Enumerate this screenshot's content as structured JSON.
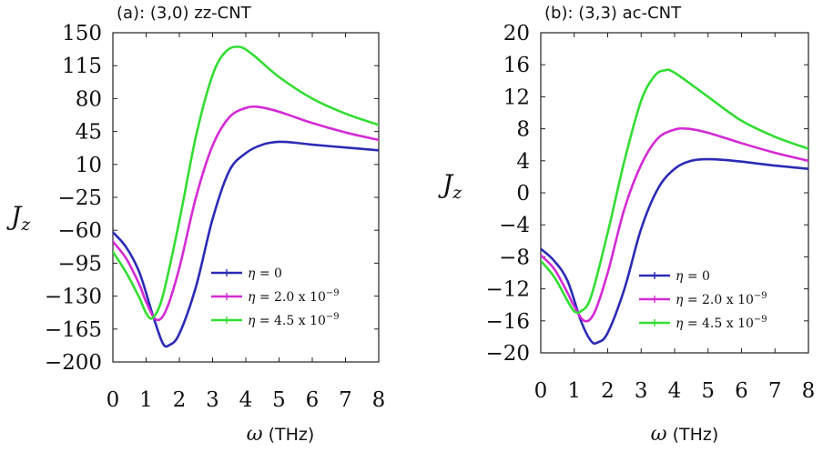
{
  "chart_data": [
    {
      "type": "line",
      "title": "(a): (3,0) zz-CNT",
      "xlabel_symbol": "ω",
      "xlabel_unit": "(THz)",
      "ylabel": "J",
      "ylabel_sub": "z",
      "xlim": [
        0,
        8
      ],
      "ylim": [
        -200,
        150
      ],
      "xticks": [
        0,
        1,
        2,
        3,
        4,
        5,
        6,
        7,
        8
      ],
      "yticks": [
        150,
        115,
        80,
        45,
        10,
        -25,
        -60,
        -95,
        -130,
        -165,
        -200
      ],
      "ytick_labels": [
        "150",
        "115",
        "80",
        "45",
        "10",
        "-25",
        "-60",
        "-95",
        "-130",
        "-165",
        "-200"
      ],
      "legend_position": "lower-right",
      "series": [
        {
          "name": "η = 0",
          "color": "#2b2bb5",
          "x": [
            0,
            0.4,
            0.8,
            1.2,
            1.5,
            1.7,
            2.0,
            2.5,
            3.0,
            3.5,
            4.0,
            4.5,
            5.0,
            5.5,
            6.0,
            7.0,
            8.0
          ],
          "y": [
            -62,
            -78,
            -105,
            -150,
            -180,
            -182,
            -170,
            -120,
            -48,
            3,
            22,
            31,
            34,
            33,
            31,
            28,
            25
          ]
        },
        {
          "name": "η = 2.0 x 10",
          "name_exp": "-9",
          "color": "#d42ad4",
          "x": [
            0,
            0.4,
            0.8,
            1.0,
            1.3,
            1.6,
            2.0,
            2.5,
            3.0,
            3.5,
            4.0,
            4.4,
            5.0,
            6.0,
            7.0,
            8.0
          ],
          "y": [
            -72,
            -90,
            -118,
            -136,
            -155,
            -145,
            -100,
            -25,
            30,
            60,
            70,
            71,
            66,
            54,
            44,
            36
          ]
        },
        {
          "name": "η = 4.5 x 10",
          "name_exp": "-9",
          "color": "#33dd33",
          "x": [
            0,
            0.4,
            0.8,
            1.0,
            1.2,
            1.5,
            2.0,
            2.5,
            3.0,
            3.4,
            3.8,
            4.2,
            5.0,
            6.0,
            7.0,
            8.0
          ],
          "y": [
            -83,
            -105,
            -132,
            -148,
            -153,
            -130,
            -50,
            40,
            105,
            130,
            135,
            127,
            103,
            80,
            64,
            52
          ]
        }
      ]
    },
    {
      "type": "line",
      "title": "(b): (3,3) ac-CNT",
      "xlabel_symbol": "ω",
      "xlabel_unit": "(THz)",
      "ylabel": "J",
      "ylabel_sub": "z",
      "xlim": [
        0,
        8
      ],
      "ylim": [
        -20,
        20
      ],
      "xticks": [
        0,
        1,
        2,
        3,
        4,
        5,
        6,
        7,
        8
      ],
      "yticks": [
        20,
        16,
        12,
        8,
        4,
        0,
        -4,
        -8,
        -12,
        -16,
        -20
      ],
      "ytick_labels": [
        "20",
        "16",
        "12",
        "8",
        "4",
        "0",
        "-4",
        "-8",
        "-12",
        "-16",
        "-20"
      ],
      "legend_position": "lower-right",
      "series": [
        {
          "name": "η = 0",
          "color": "#2b2bb5",
          "x": [
            0,
            0.4,
            0.8,
            1.2,
            1.5,
            1.7,
            2.0,
            2.5,
            3.0,
            3.5,
            4.0,
            4.5,
            5.0,
            5.5,
            6.0,
            7.0,
            8.0
          ],
          "y": [
            -7,
            -8.5,
            -11,
            -16,
            -18.5,
            -18.7,
            -17.5,
            -12,
            -4.5,
            0.5,
            3,
            4,
            4.2,
            4.1,
            3.9,
            3.4,
            3
          ]
        },
        {
          "name": "η = 2.0 x 10",
          "name_exp": "-9",
          "color": "#d42ad4",
          "x": [
            0,
            0.4,
            0.8,
            1.0,
            1.3,
            1.6,
            2.0,
            2.5,
            3.0,
            3.5,
            4.0,
            4.4,
            5.0,
            6.0,
            7.0,
            8.0
          ],
          "y": [
            -7.8,
            -9.5,
            -12.5,
            -14.2,
            -16,
            -15,
            -10,
            -2,
            3.5,
            6.8,
            7.9,
            8,
            7.5,
            6.2,
            5,
            4
          ]
        },
        {
          "name": "η = 4.5 x 10",
          "name_exp": "-9",
          "color": "#33dd33",
          "x": [
            0,
            0.4,
            0.8,
            1.0,
            1.2,
            1.5,
            2.0,
            2.5,
            3.0,
            3.4,
            3.7,
            4.0,
            5.0,
            6.0,
            7.0,
            8.0
          ],
          "y": [
            -8.5,
            -10.5,
            -13.5,
            -14.8,
            -14.8,
            -13,
            -5,
            4,
            11.5,
            14.6,
            15.3,
            15,
            12,
            9,
            7,
            5.5
          ]
        }
      ]
    }
  ]
}
